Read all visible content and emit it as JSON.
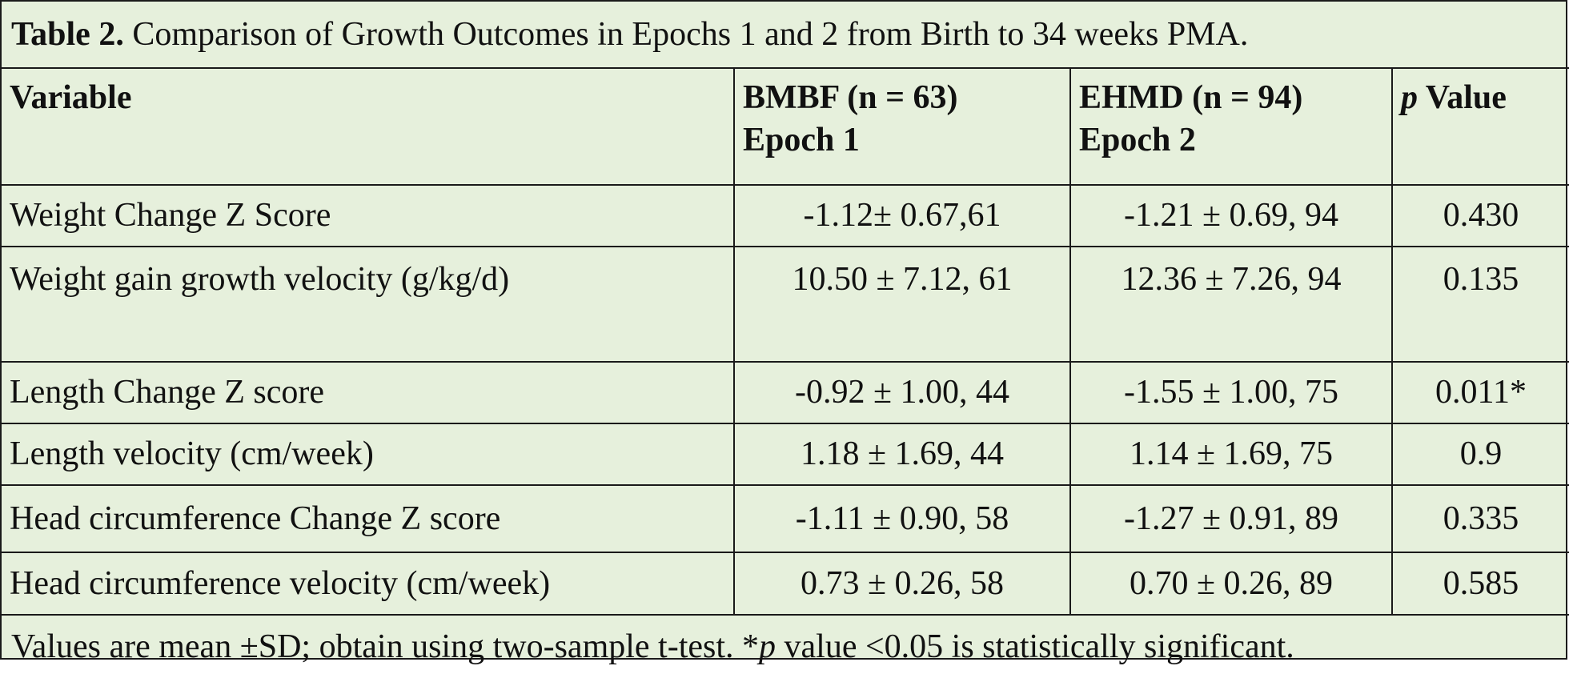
{
  "caption": {
    "label": "Table 2.",
    "text": " Comparison of Growth Outcomes in Epochs 1 and 2 from Birth to 34 weeks PMA."
  },
  "headers": {
    "variable": "Variable",
    "bmbf_line1": "BMBF (n = 63)",
    "bmbf_line2": "Epoch 1",
    "ehmd_line1": "EHMD (n = 94)",
    "ehmd_line2": "Epoch 2",
    "p_italic": "p",
    "p_rest": " Value"
  },
  "rows": [
    {
      "variable": "Weight Change Z Score",
      "bmbf": "-1.12± 0.67,61",
      "ehmd": "-1.21 ± 0.69, 94",
      "p": "0.430"
    },
    {
      "variable": "Weight gain growth velocity (g/kg/d)",
      "bmbf": "10.50 ± 7.12, 61",
      "ehmd": "12.36 ± 7.26, 94",
      "p": "0.135"
    },
    {
      "variable": "Length Change Z score",
      "bmbf": "-0.92 ± 1.00, 44",
      "ehmd": "-1.55 ± 1.00, 75",
      "p": "0.011*"
    },
    {
      "variable": "Length velocity (cm/week)",
      "bmbf": "1.18 ± 1.69, 44",
      "ehmd": "1.14 ± 1.69, 75",
      "p": "0.9"
    },
    {
      "variable": "Head circumference Change Z score",
      "bmbf": "-1.11 ± 0.90, 58",
      "ehmd": "-1.27 ± 0.91, 89",
      "p": "0.335"
    },
    {
      "variable": "Head circumference velocity (cm/week)",
      "bmbf": "0.73 ± 0.26, 58",
      "ehmd": "0.70 ± 0.26, 89",
      "p": "0.585"
    }
  ],
  "footnote": {
    "pre": "Values are mean ±SD; obtain using two-sample t-test. *",
    "italic": "p",
    "post": " value <0.05 is statistically significant."
  },
  "colors": {
    "background": "#e6f0dc",
    "border": "#1a1a1a"
  }
}
